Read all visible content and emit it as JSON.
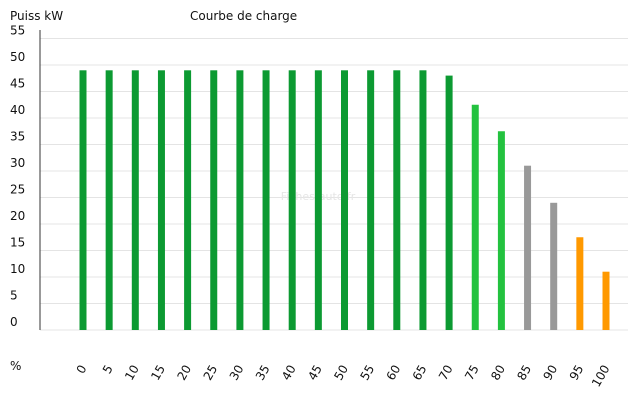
{
  "chart_data": {
    "type": "bar",
    "title": "Courbe de charge",
    "ylabel": "Puiss kW",
    "xlabel": "%",
    "watermark": "Fiches-auto.fr",
    "categories": [
      "0",
      "5",
      "10",
      "15",
      "20",
      "25",
      "30",
      "35",
      "40",
      "45",
      "50",
      "55",
      "60",
      "65",
      "70",
      "75",
      "80",
      "85",
      "90",
      "95",
      "100"
    ],
    "values": [
      49,
      49,
      49,
      49,
      49,
      49,
      49,
      49,
      49,
      49,
      49,
      49,
      49,
      49,
      48,
      42.5,
      37.5,
      31,
      24,
      17.5,
      11
    ],
    "colors": [
      "#0c9a32",
      "#0c9a32",
      "#0c9a32",
      "#0c9a32",
      "#0c9a32",
      "#0c9a32",
      "#0c9a32",
      "#0c9a32",
      "#0c9a32",
      "#0c9a32",
      "#0c9a32",
      "#0c9a32",
      "#0c9a32",
      "#0c9a32",
      "#0c9a32",
      "#23c23f",
      "#23c23f",
      "#999999",
      "#999999",
      "#ff9900",
      "#ff9900"
    ],
    "ylim": [
      0,
      55
    ],
    "yticks": [
      0,
      5,
      10,
      15,
      20,
      25,
      30,
      35,
      40,
      45,
      50,
      55
    ],
    "grid": true
  }
}
